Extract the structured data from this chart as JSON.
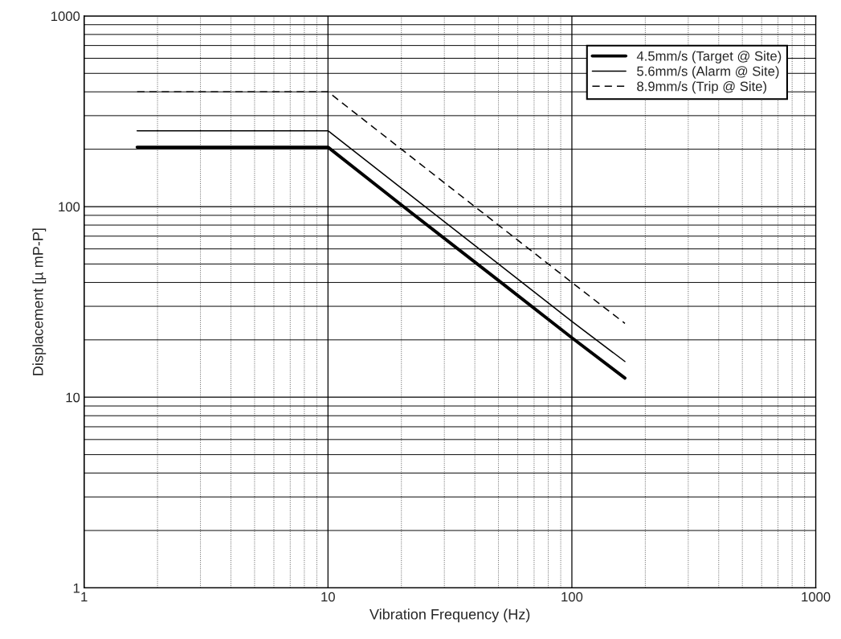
{
  "chart_data": {
    "type": "line",
    "xlabel": "Vibration Frequency (Hz)",
    "ylabel": "Displacement [µ mP-P]",
    "log": "xy",
    "xlim": [
      1,
      1000
    ],
    "ylim": [
      1,
      1000
    ],
    "xticks": [
      1,
      10,
      100,
      1000
    ],
    "yticks": [
      1,
      10,
      100,
      1000
    ],
    "grid": true,
    "legend": "top right",
    "marker": "none",
    "series": [
      {
        "name": "4.5mm/s (Target @ Site)",
        "color": "#000000",
        "line_style": "solid",
        "x": [
          1.65,
          10,
          20,
          50,
          100,
          165
        ],
        "values": [
          205,
          205,
          102,
          41,
          20.5,
          12.6
        ]
      },
      {
        "name": "5.6mm/s (Alarm @ Site)",
        "color": "#000000",
        "line_style": "solid",
        "x": [
          1.65,
          10,
          20,
          50,
          100,
          165
        ],
        "values": [
          250,
          250,
          125,
          50,
          25,
          15.4
        ]
      },
      {
        "name": "8.9mm/s (Trip @ Site)",
        "color": "#000000",
        "line_style": "dashed",
        "x": [
          1.65,
          10,
          20,
          50,
          100,
          165
        ],
        "values": [
          400,
          400,
          200,
          80,
          40,
          24.4
        ]
      }
    ]
  }
}
